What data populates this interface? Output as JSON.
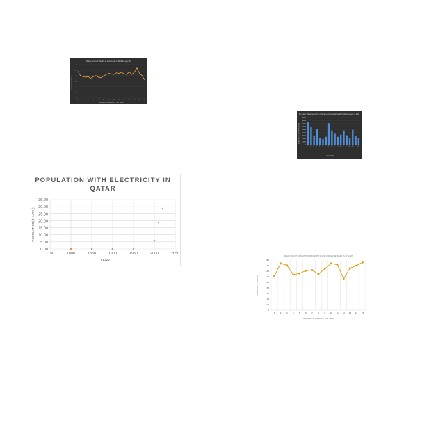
{
  "chart_data": [
    {
      "type": "line",
      "title": "Weekly count of Deaths in Venezuela in 2022 for age 85+",
      "xlabel": "NUMBER OF WEEK OF THE YEAR",
      "ylabel": "NUMBER OF DEATHS",
      "theme": "dark",
      "colors": {
        "background": "#2f2f2f",
        "line": "#f2a540",
        "text": "#d9d9d9",
        "grid": "#4a4a4a"
      },
      "x": [
        1,
        2,
        3,
        4,
        5,
        6,
        7,
        8,
        9,
        10,
        11,
        12,
        13,
        14,
        15,
        16,
        17,
        18,
        19,
        20,
        21,
        22,
        23,
        24,
        25,
        26,
        27
      ],
      "values": [
        2.4,
        2.0,
        1.9,
        1.85,
        1.9,
        1.75,
        1.9,
        2.0,
        1.85,
        1.8,
        1.95,
        2.1,
        2.2,
        2.15,
        2.1,
        2.25,
        2.2,
        2.3,
        2.15,
        2.1,
        2.35,
        2.1,
        2.3,
        2.7,
        2.2,
        2.0,
        1.6
      ],
      "ylim": [
        0,
        3.0
      ],
      "yticks": [
        "0",
        "0.5",
        "1",
        "1.5",
        "2",
        "2.5",
        "3"
      ],
      "xticks": [
        "1",
        "3",
        "5",
        "7",
        "9",
        "11",
        "13",
        "15",
        "17",
        "19",
        "21",
        "23",
        "25",
        "27"
      ]
    },
    {
      "type": "bar",
      "title": "Air quality Measures on the national environmental health tracking network in 2009",
      "xlabel": "COUNTRY",
      "ylabel": "MEASURE (% OF POPULATION)",
      "theme": "dark",
      "colors": {
        "background": "#2f2f2f",
        "bar": "#4e8fd8",
        "text": "#d9d9d9",
        "grid": "#4a4a4a"
      },
      "categories": [
        "1",
        "2",
        "3",
        "4",
        "5",
        "6",
        "7",
        "8",
        "9",
        "10",
        "11",
        "12",
        "13",
        "14",
        "15",
        "16",
        "17",
        "18"
      ],
      "values": [
        76000,
        58000,
        30000,
        52000,
        21000,
        18000,
        26000,
        71000,
        47000,
        36000,
        26000,
        33000,
        47000,
        31000,
        20000,
        49000,
        29000,
        23000
      ],
      "ylim": [
        0,
        90000
      ],
      "yticks": [
        "0",
        "10000",
        "20000",
        "30000",
        "40000",
        "50000",
        "60000",
        "70000",
        "80000",
        "90000"
      ]
    },
    {
      "type": "scatter",
      "title": "POPULATION WITH ELECTRICITY IN QATAR",
      "xlabel": "YEAR",
      "ylabel": "POPULATION(IN LAKH)",
      "colors": {
        "marker": "#ed7d31",
        "grid": "#d9d9d9",
        "text": "#595959",
        "title": "#595959"
      },
      "points": [
        [
          1800,
          0.0
        ],
        [
          1850,
          0.0
        ],
        [
          1900,
          0.0
        ],
        [
          1950,
          0.0
        ],
        [
          2000,
          5.9
        ],
        [
          2010,
          18.6
        ],
        [
          2020,
          28.5
        ]
      ],
      "xlim": [
        1750,
        2050
      ],
      "ylim": [
        0,
        35
      ],
      "xticks": [
        "1750",
        "1800",
        "1850",
        "1900",
        "1950",
        "2000",
        "2050"
      ],
      "yticks": [
        "0.00",
        "5.00",
        "10.00",
        "15.00",
        "20.00",
        "25.00",
        "30.00",
        "35.00"
      ]
    },
    {
      "type": "line",
      "title": "WEEKLY COUNT OF DEATHS IN MISSISSIPPI IN 2022 FOR AGE BETWEEN 65-74 YEARS",
      "xlabel": "NUMBER OF WEEK OF THE YEAR",
      "ylabel": "NUMBER OF DEATHS",
      "colors": {
        "line": "#d4a418",
        "marker": "#d4a418",
        "grid": "#d9d9d9",
        "text": "#595959"
      },
      "x": [
        1,
        2,
        3,
        4,
        5,
        6,
        7,
        8,
        9,
        10,
        11,
        12,
        13,
        14,
        15
      ],
      "values": [
        122,
        168,
        161,
        128,
        132,
        142,
        144,
        130,
        148,
        168,
        163,
        113,
        151,
        160,
        172
      ],
      "ylim": [
        0,
        180
      ],
      "xticks": [
        "1",
        "2",
        "3",
        "4",
        "5",
        "6",
        "7",
        "8",
        "9",
        "10",
        "11",
        "12",
        "13",
        "14",
        "15"
      ],
      "yticks": [
        "0",
        "20",
        "40",
        "60",
        "80",
        "100",
        "120",
        "140",
        "160",
        "180"
      ]
    }
  ]
}
